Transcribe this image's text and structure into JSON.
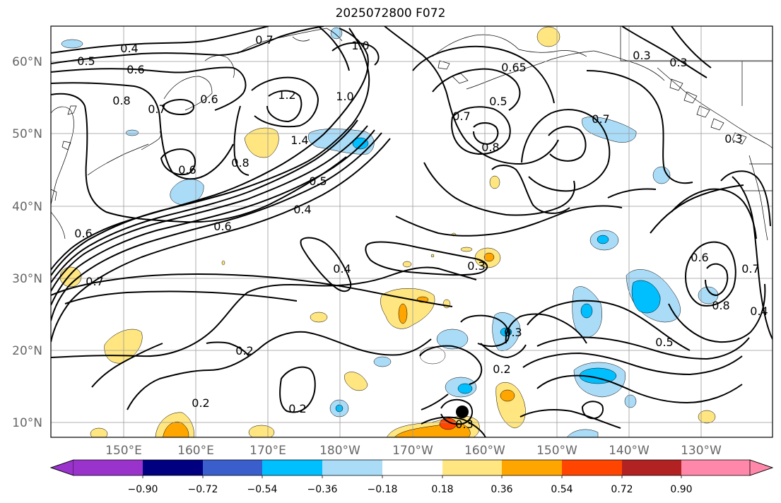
{
  "title": "2025072800 F072",
  "map": {
    "lat_ticks": [
      "60°N",
      "50°N",
      "40°N",
      "30°N",
      "20°N",
      "10°N"
    ],
    "lon_ticks": [
      "150°E",
      "160°E",
      "170°E",
      "180°W",
      "170°W",
      "160°W",
      "150°W",
      "140°W",
      "130°W"
    ],
    "grid": true,
    "contour_color": "#000000",
    "storm_marker": "black dot"
  },
  "contour_labels": [
    "0.4",
    "0.5",
    "0.6",
    "0.8",
    "0.7",
    "0.6",
    "0.7",
    "1.0",
    "1.2",
    "1.4",
    "1.0",
    "0.8",
    "0.6",
    "0.5",
    "0.4",
    "0.6",
    "0.6",
    "0.7",
    "0.65",
    "0.5",
    "0.7",
    "0.8",
    "0.7",
    "0.3",
    "0.4",
    "0.3",
    "0.3",
    "0.2",
    "0.2",
    "0.2",
    "0.2",
    "0.3",
    "0.6",
    "0.7",
    "0.8",
    "0.4",
    "0.5",
    "0.3",
    "0.3"
  ],
  "colorbar": {
    "ticks": [
      "−0.90",
      "−0.72",
      "−0.54",
      "−0.36",
      "−0.18",
      "0.18",
      "0.36",
      "0.54",
      "0.72",
      "0.90"
    ],
    "colors": [
      "#9933cc",
      "#000080",
      "#3a5fcd",
      "#00bfff",
      "#aadcf8",
      "#ffffff",
      "#ffe680",
      "#ffa500",
      "#ff4500",
      "#b22222",
      "#ff88aa",
      "#ff88aa"
    ]
  }
}
